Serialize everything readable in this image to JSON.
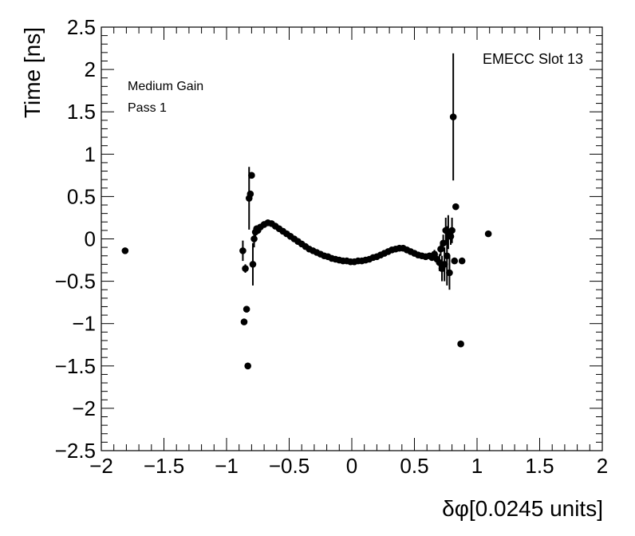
{
  "chart_data": {
    "type": "scatter",
    "title": "",
    "xlabel": "δφ[0.0245 units]",
    "ylabel": "Time [ns]",
    "xlim": [
      -2,
      2
    ],
    "ylim": [
      -2.5,
      2.5
    ],
    "x_ticks": [
      "−2",
      "−1.5",
      "−1",
      "−0.5",
      "0",
      "0.5",
      "1",
      "1.5",
      "2"
    ],
    "y_ticks": [
      "2.5",
      "2",
      "1.5",
      "1",
      "0.5",
      "0",
      "−0.5",
      "−1",
      "−1.5",
      "−2",
      "−2.5"
    ],
    "grid": false,
    "annotations": {
      "top_left_line1": "Medium Gain",
      "top_left_line2": "Pass 1",
      "top_right": "EMECC Slot 13"
    },
    "marker_color": "#000000",
    "series": [
      {
        "points": [
          {
            "x": -1.81,
            "y": -0.14,
            "err": 0.0
          },
          {
            "x": -0.87,
            "y": -0.14,
            "err": 0.12
          },
          {
            "x": -0.86,
            "y": -0.98,
            "err": 0.0
          },
          {
            "x": -0.85,
            "y": -0.35,
            "err": 0.05
          },
          {
            "x": -0.84,
            "y": -0.83,
            "err": 0.0
          },
          {
            "x": -0.83,
            "y": -1.5,
            "err": 0.0
          },
          {
            "x": -0.82,
            "y": 0.48,
            "err": 0.37
          },
          {
            "x": -0.81,
            "y": 0.53,
            "err": 0.0
          },
          {
            "x": -0.8,
            "y": 0.75,
            "err": 0.0
          },
          {
            "x": -0.79,
            "y": -0.3,
            "err": 0.25
          },
          {
            "x": -0.78,
            "y": 0.0,
            "err": 0.1
          },
          {
            "x": -0.77,
            "y": 0.08,
            "err": 0.06
          },
          {
            "x": -0.76,
            "y": 0.12,
            "err": 0.04
          },
          {
            "x": -0.75,
            "y": 0.1,
            "err": 0.03
          },
          {
            "x": -0.73,
            "y": 0.14,
            "err": 0.02
          },
          {
            "x": -0.7,
            "y": 0.17,
            "err": 0.01
          },
          {
            "x": -0.67,
            "y": 0.19,
            "err": 0.01
          },
          {
            "x": -0.64,
            "y": 0.18,
            "err": 0.01
          },
          {
            "x": -0.61,
            "y": 0.15,
            "err": 0.01
          },
          {
            "x": -0.58,
            "y": 0.12,
            "err": 0.0
          },
          {
            "x": -0.55,
            "y": 0.09,
            "err": 0.0
          },
          {
            "x": -0.52,
            "y": 0.06,
            "err": 0.0
          },
          {
            "x": -0.49,
            "y": 0.03,
            "err": 0.0
          },
          {
            "x": -0.46,
            "y": 0.0,
            "err": 0.0
          },
          {
            "x": -0.43,
            "y": -0.03,
            "err": 0.0
          },
          {
            "x": -0.4,
            "y": -0.06,
            "err": 0.0
          },
          {
            "x": -0.37,
            "y": -0.09,
            "err": 0.0
          },
          {
            "x": -0.34,
            "y": -0.12,
            "err": 0.0
          },
          {
            "x": -0.31,
            "y": -0.14,
            "err": 0.0
          },
          {
            "x": -0.28,
            "y": -0.16,
            "err": 0.0
          },
          {
            "x": -0.25,
            "y": -0.18,
            "err": 0.0
          },
          {
            "x": -0.22,
            "y": -0.2,
            "err": 0.0
          },
          {
            "x": -0.19,
            "y": -0.21,
            "err": 0.0
          },
          {
            "x": -0.16,
            "y": -0.23,
            "err": 0.0
          },
          {
            "x": -0.13,
            "y": -0.24,
            "err": 0.0
          },
          {
            "x": -0.1,
            "y": -0.25,
            "err": 0.0
          },
          {
            "x": -0.07,
            "y": -0.26,
            "err": 0.0
          },
          {
            "x": -0.04,
            "y": -0.26,
            "err": 0.0
          },
          {
            "x": -0.01,
            "y": -0.27,
            "err": 0.0
          },
          {
            "x": 0.02,
            "y": -0.27,
            "err": 0.0
          },
          {
            "x": 0.05,
            "y": -0.26,
            "err": 0.0
          },
          {
            "x": 0.08,
            "y": -0.26,
            "err": 0.0
          },
          {
            "x": 0.11,
            "y": -0.25,
            "err": 0.0
          },
          {
            "x": 0.14,
            "y": -0.24,
            "err": 0.0
          },
          {
            "x": 0.17,
            "y": -0.22,
            "err": 0.0
          },
          {
            "x": 0.2,
            "y": -0.21,
            "err": 0.0
          },
          {
            "x": 0.23,
            "y": -0.19,
            "err": 0.0
          },
          {
            "x": 0.26,
            "y": -0.17,
            "err": 0.0
          },
          {
            "x": 0.29,
            "y": -0.15,
            "err": 0.0
          },
          {
            "x": 0.32,
            "y": -0.13,
            "err": 0.0
          },
          {
            "x": 0.35,
            "y": -0.12,
            "err": 0.0
          },
          {
            "x": 0.38,
            "y": -0.11,
            "err": 0.0
          },
          {
            "x": 0.41,
            "y": -0.11,
            "err": 0.0
          },
          {
            "x": 0.44,
            "y": -0.13,
            "err": 0.0
          },
          {
            "x": 0.47,
            "y": -0.15,
            "err": 0.01
          },
          {
            "x": 0.5,
            "y": -0.17,
            "err": 0.01
          },
          {
            "x": 0.53,
            "y": -0.19,
            "err": 0.01
          },
          {
            "x": 0.56,
            "y": -0.2,
            "err": 0.01
          },
          {
            "x": 0.59,
            "y": -0.21,
            "err": 0.02
          },
          {
            "x": 0.62,
            "y": -0.2,
            "err": 0.03
          },
          {
            "x": 0.64,
            "y": -0.22,
            "err": 0.04
          },
          {
            "x": 0.66,
            "y": -0.18,
            "err": 0.05
          },
          {
            "x": 0.68,
            "y": -0.24,
            "err": 0.06
          },
          {
            "x": 0.7,
            "y": -0.28,
            "err": 0.1
          },
          {
            "x": 0.71,
            "y": -0.12,
            "err": 0.08
          },
          {
            "x": 0.72,
            "y": -0.35,
            "err": 0.15
          },
          {
            "x": 0.73,
            "y": -0.05,
            "err": 0.1
          },
          {
            "x": 0.74,
            "y": -0.3,
            "err": 0.2
          },
          {
            "x": 0.75,
            "y": 0.1,
            "err": 0.15
          },
          {
            "x": 0.76,
            "y": -0.2,
            "err": 0.35
          },
          {
            "x": 0.77,
            "y": 0.08,
            "err": 0.2
          },
          {
            "x": 0.78,
            "y": -0.4,
            "err": 0.2
          },
          {
            "x": 0.79,
            "y": 0.03,
            "err": 0.1
          },
          {
            "x": 0.8,
            "y": 0.1,
            "err": 0.15
          },
          {
            "x": 0.81,
            "y": 1.44,
            "err": 0.75
          },
          {
            "x": 0.82,
            "y": -0.26,
            "err": 0.0
          },
          {
            "x": 0.83,
            "y": 0.38,
            "err": 0.0
          },
          {
            "x": 0.87,
            "y": -1.24,
            "err": 0.0
          },
          {
            "x": 0.88,
            "y": -0.26,
            "err": 0.0
          },
          {
            "x": 1.09,
            "y": 0.06,
            "err": 0.0
          }
        ]
      }
    ]
  }
}
